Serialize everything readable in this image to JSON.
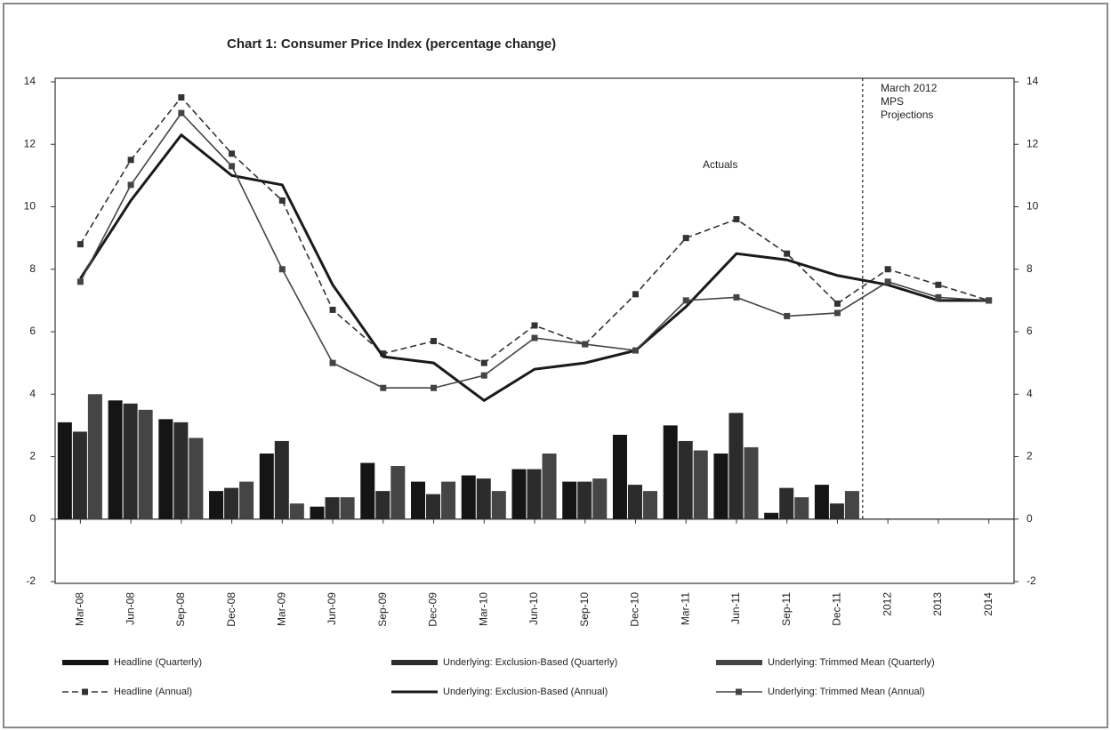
{
  "chart_data": {
    "type": "bar",
    "title": "Chart 1:  Consumer Price Index (percentage change)",
    "categories": [
      "Mar-08",
      "Jun-08",
      "Sep-08",
      "Dec-08",
      "Mar-09",
      "Jun-09",
      "Sep-09",
      "Dec-09",
      "Mar-10",
      "Jun-10",
      "Sep-10",
      "Dec-10",
      "Mar-11",
      "Jun-11",
      "Sep-11",
      "Dec-11",
      "2012",
      "2013",
      "2014"
    ],
    "series": [
      {
        "name": "Headline (Quarterly)",
        "type": "bar",
        "color": "#151515",
        "values": [
          3.1,
          3.8,
          3.2,
          0.9,
          2.1,
          0.4,
          1.8,
          1.2,
          1.4,
          1.6,
          1.2,
          2.7,
          3.0,
          2.1,
          0.2,
          1.1,
          null,
          null,
          null
        ]
      },
      {
        "name": "Underlying: Exclusion-Based (Quarterly)",
        "type": "bar",
        "color": "#2c2c2c",
        "values": [
          2.8,
          3.7,
          3.1,
          1.0,
          2.5,
          0.7,
          0.9,
          0.8,
          1.3,
          1.6,
          1.2,
          1.1,
          2.5,
          3.4,
          1.0,
          0.5,
          null,
          null,
          null
        ]
      },
      {
        "name": "Underlying: Trimmed Mean (Quarterly)",
        "type": "bar",
        "color": "#454545",
        "values": [
          4.0,
          3.5,
          2.6,
          1.2,
          0.5,
          0.7,
          1.7,
          1.2,
          0.9,
          2.1,
          1.3,
          0.9,
          2.2,
          2.3,
          0.7,
          0.9,
          null,
          null,
          null
        ]
      },
      {
        "name": "Headline (Annual)",
        "type": "line",
        "color": "#333333",
        "dash": true,
        "marker": "square",
        "values": [
          8.8,
          11.5,
          13.5,
          11.7,
          10.2,
          6.7,
          5.3,
          5.7,
          5.0,
          6.2,
          5.6,
          7.2,
          9.0,
          9.6,
          8.5,
          6.9,
          8.0,
          7.5,
          7.0
        ]
      },
      {
        "name": "Underlying: Exclusion-Based (Annual)",
        "type": "line",
        "color": "#1a1a1a",
        "dash": false,
        "marker": "none",
        "values": [
          7.7,
          10.2,
          12.3,
          11.0,
          10.7,
          7.5,
          5.2,
          5.0,
          3.8,
          4.8,
          5.0,
          5.4,
          6.8,
          8.5,
          8.3,
          7.8,
          7.5,
          7.0,
          7.0
        ]
      },
      {
        "name": "Underlying: Trimmed Mean (Annual)",
        "type": "line",
        "color": "#444444",
        "dash": false,
        "marker": "square",
        "values": [
          7.6,
          10.7,
          13.0,
          11.3,
          8.0,
          5.0,
          4.2,
          4.2,
          4.6,
          5.8,
          5.6,
          5.4,
          7.0,
          7.1,
          6.5,
          6.6,
          7.6,
          7.1,
          7.0
        ]
      }
    ],
    "ylim": [
      -2,
      14
    ],
    "yticks": [
      -2,
      0,
      2,
      4,
      6,
      8,
      10,
      12,
      14
    ],
    "y2lim": [
      -2,
      14
    ],
    "y2ticks": [
      -2,
      0,
      2,
      4,
      6,
      8,
      10,
      12,
      14
    ],
    "annotations": [
      "Actuals",
      [
        "March 2012",
        "MPS",
        "Projections"
      ]
    ],
    "legend": "bottom"
  }
}
